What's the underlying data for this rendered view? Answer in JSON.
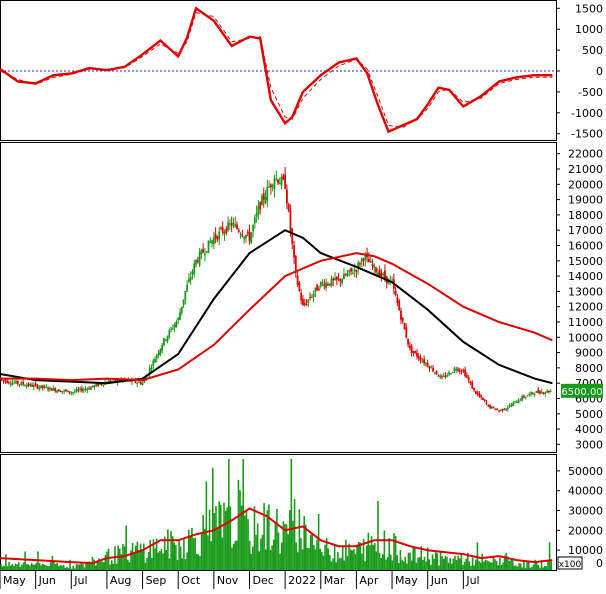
{
  "chart_data": [
    {
      "panel": "oscillator",
      "type": "line",
      "y_ticks": [
        1500,
        1000,
        500,
        0,
        -500,
        -1000,
        -1500
      ],
      "ylim": [
        -1650,
        1650
      ],
      "zero_line": 0,
      "series": [
        {
          "style": "solid",
          "color": "#e00000",
          "x_month": [
            0,
            0.5,
            1,
            1.5,
            2,
            2.5,
            3,
            3.5,
            4,
            4.5,
            5,
            5.25,
            5.5,
            6,
            6.5,
            7,
            7.3,
            7.6,
            8,
            8.2,
            8.5,
            9,
            9.5,
            10,
            10.3,
            10.6,
            10.9,
            11.3,
            11.7,
            12,
            12.3,
            12.6,
            13,
            13.5,
            14,
            14.5,
            15,
            15.5
          ],
          "y": [
            50,
            -250,
            -300,
            -100,
            -60,
            70,
            20,
            100,
            400,
            730,
            350,
            800,
            1500,
            1200,
            600,
            820,
            780,
            -700,
            -1250,
            -1100,
            -500,
            -100,
            200,
            300,
            -50,
            -800,
            -1450,
            -1300,
            -1150,
            -800,
            -400,
            -450,
            -850,
            -600,
            -250,
            -150,
            -100,
            -100
          ]
        },
        {
          "style": "dashed",
          "color": "#e00000",
          "x_month": [
            0,
            0.5,
            1,
            1.5,
            2,
            2.5,
            3,
            3.5,
            4,
            4.5,
            5,
            5.25,
            5.5,
            6,
            6.5,
            7,
            7.3,
            7.6,
            8,
            8.2,
            8.5,
            9,
            9.5,
            10,
            10.3,
            10.6,
            10.9,
            11.3,
            11.7,
            12,
            12.3,
            12.6,
            13,
            13.5,
            14,
            14.5,
            15,
            15.5
          ],
          "y": [
            0,
            -200,
            -320,
            -150,
            -80,
            40,
            40,
            80,
            350,
            650,
            420,
            700,
            1400,
            1300,
            700,
            780,
            820,
            -400,
            -1100,
            -1150,
            -650,
            -200,
            120,
            280,
            50,
            -600,
            -1300,
            -1350,
            -1150,
            -900,
            -500,
            -430,
            -750,
            -650,
            -300,
            -200,
            -150,
            -150
          ]
        }
      ]
    },
    {
      "panel": "price",
      "type": "candlestick",
      "y_ticks": [
        3000,
        4000,
        5000,
        6000,
        7000,
        8000,
        9000,
        10000,
        11000,
        12000,
        13000,
        14000,
        15000,
        16000,
        17000,
        18000,
        19000,
        20000,
        21000,
        22000
      ],
      "ylim": [
        2500,
        22700
      ],
      "last_price_label": "6500.00",
      "close_path": {
        "x_month": [
          0,
          1,
          2,
          2.5,
          3,
          3.5,
          4,
          4.3,
          4.6,
          5,
          5.2,
          5.5,
          6,
          6.5,
          7,
          7.3,
          7.7,
          8,
          8.3,
          8.5,
          9,
          9.5,
          10,
          10.2,
          10.5,
          11,
          11.5,
          12,
          12.4,
          12.8,
          13,
          13.3,
          13.7,
          14,
          14.3,
          14.6,
          15,
          15.5
        ],
        "y": [
          7200,
          6800,
          6400,
          6700,
          7100,
          7200,
          7000,
          8400,
          9800,
          11200,
          13000,
          15000,
          16500,
          17400,
          16500,
          18700,
          20500,
          20000,
          14000,
          12000,
          13500,
          13700,
          14500,
          15300,
          14500,
          13500,
          9200,
          8200,
          7300,
          8000,
          7800,
          6500,
          5500,
          5200,
          5500,
          6000,
          6400,
          6500
        ]
      },
      "series": [
        {
          "name": "MA black",
          "color": "#000000",
          "x_month": [
            0,
            1,
            2,
            3,
            4,
            5,
            6,
            7,
            8,
            8.5,
            9,
            10,
            11,
            12,
            13,
            14,
            15,
            15.5
          ],
          "y": [
            7600,
            7200,
            7100,
            7000,
            7300,
            8900,
            12500,
            15500,
            17000,
            16500,
            15500,
            14600,
            13600,
            11800,
            9700,
            8200,
            7300,
            7000
          ]
        },
        {
          "name": "MA red",
          "color": "#e00000",
          "x_month": [
            0,
            1,
            2,
            3,
            4,
            5,
            6,
            7,
            8,
            9,
            10,
            10.5,
            11,
            12,
            13,
            14,
            15,
            15.5
          ],
          "y": [
            7300,
            7300,
            7200,
            7300,
            7200,
            7900,
            9500,
            11800,
            14000,
            15000,
            15500,
            15300,
            14800,
            13500,
            12000,
            11000,
            10300,
            9800
          ]
        }
      ]
    },
    {
      "panel": "volume",
      "type": "bar",
      "unit_label": "x100",
      "y_ticks": [
        10000,
        20000,
        30000,
        40000,
        50000
      ],
      "ylim": [
        0,
        58000
      ],
      "volume_envelope": {
        "x_month": [
          0,
          1,
          2,
          2.6,
          3,
          3.3,
          4,
          4.7,
          5,
          5.5,
          6,
          6.5,
          7,
          7.5,
          8,
          8.3,
          8.7,
          9,
          10,
          10.5,
          11,
          11.5,
          12,
          12.5,
          13,
          13.5,
          14,
          14.5,
          15,
          15.5
        ],
        "y": [
          2500,
          4000,
          2000,
          4000,
          8000,
          9000,
          12000,
          15000,
          14000,
          20000,
          25000,
          28000,
          22000,
          26000,
          22000,
          27000,
          20000,
          12000,
          11000,
          16000,
          14000,
          8000,
          9000,
          6000,
          7000,
          4000,
          6000,
          4000,
          3000,
          5000
        ]
      },
      "series": [
        {
          "name": "Volume MA",
          "color": "#e00000",
          "x_month": [
            0,
            1,
            2,
            2.6,
            3,
            3.5,
            4,
            4.5,
            5,
            5.5,
            6,
            6.5,
            7,
            7.5,
            8,
            8.5,
            9,
            9.5,
            10,
            10.5,
            11,
            11.5,
            12,
            12.5,
            13,
            13.5,
            14,
            14.5,
            15,
            15.5
          ],
          "y": [
            6000,
            5000,
            4000,
            3500,
            6000,
            7000,
            10000,
            15000,
            15000,
            18000,
            20000,
            25000,
            31000,
            27000,
            20000,
            22000,
            15000,
            12000,
            12000,
            15000,
            15000,
            12000,
            10000,
            9000,
            8000,
            6000,
            7000,
            5000,
            4000,
            5000
          ]
        }
      ]
    }
  ],
  "x_axis": {
    "labels": [
      "May",
      "Jun",
      "Jul",
      "Aug",
      "Sep",
      "Oct",
      "Nov",
      "Dec",
      "2022",
      "Mar",
      "Apr",
      "May",
      "Jun",
      "Jul"
    ],
    "positions_month": [
      0.25,
      1.25,
      2.25,
      3.25,
      4.25,
      5.25,
      6.25,
      7.25,
      8.25,
      9.25,
      10.25,
      11.25,
      12.25,
      13.25
    ]
  }
}
